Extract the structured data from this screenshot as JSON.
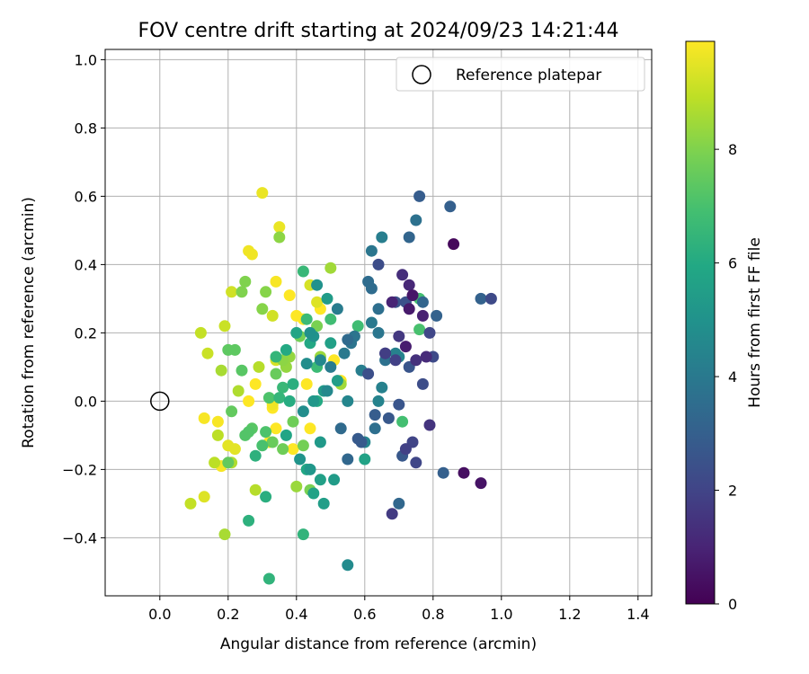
{
  "chart_data": {
    "type": "scatter",
    "title": "FOV centre drift starting at 2024/09/23 14:21:44",
    "xlabel": "Angular distance from reference (arcmin)",
    "ylabel": "Rotation from reference (arcmin)",
    "xlim": [
      -0.16,
      1.44
    ],
    "ylim": [
      -0.57,
      1.03
    ],
    "x_ticks": [
      0.0,
      0.2,
      0.4,
      0.6,
      0.8,
      1.0,
      1.2,
      1.4
    ],
    "x_tick_labels": [
      "0.0",
      "0.2",
      "0.4",
      "0.6",
      "0.8",
      "1.0",
      "1.2",
      "1.4"
    ],
    "y_ticks": [
      -0.4,
      -0.2,
      0.0,
      0.2,
      0.4,
      0.6,
      0.8,
      1.0
    ],
    "y_tick_labels": [
      "−0.4",
      "−0.2",
      "0.0",
      "0.2",
      "0.4",
      "0.6",
      "0.8",
      "1.0"
    ],
    "grid": true,
    "legend": {
      "placement": "top-right",
      "entries": [
        "Reference platepar"
      ]
    },
    "reference_point": {
      "x": 0.0,
      "y": 0.0
    },
    "colorbar": {
      "label": "Hours from first FF file",
      "range": [
        0,
        9.9
      ],
      "ticks": [
        0,
        2,
        4,
        6,
        8
      ],
      "tick_labels": [
        "0",
        "2",
        "4",
        "6",
        "8"
      ],
      "colormap": "viridis"
    },
    "series": [
      {
        "points": [
          [
            0.86,
            0.46,
            0.2
          ],
          [
            0.89,
            -0.21,
            0.4
          ],
          [
            0.94,
            -0.24,
            0.5
          ],
          [
            0.74,
            0.31,
            0.6
          ],
          [
            0.73,
            0.27,
            0.7
          ],
          [
            0.72,
            0.16,
            0.8
          ],
          [
            0.77,
            0.25,
            0.9
          ],
          [
            0.68,
            0.29,
            1.0
          ],
          [
            0.73,
            0.34,
            1.1
          ],
          [
            0.78,
            0.13,
            1.2
          ],
          [
            0.71,
            0.37,
            1.3
          ],
          [
            0.75,
            0.12,
            1.4
          ],
          [
            0.79,
            -0.07,
            1.5
          ],
          [
            0.7,
            0.19,
            1.6
          ],
          [
            0.68,
            -0.33,
            1.7
          ],
          [
            0.66,
            0.14,
            1.8
          ],
          [
            0.69,
            0.12,
            1.9
          ],
          [
            0.72,
            -0.14,
            1.9
          ],
          [
            0.74,
            -0.12,
            2.0
          ],
          [
            0.75,
            -0.18,
            2.1
          ],
          [
            0.79,
            0.2,
            2.1
          ],
          [
            0.8,
            0.13,
            2.2
          ],
          [
            0.97,
            0.3,
            2.2
          ],
          [
            0.77,
            0.05,
            2.3
          ],
          [
            0.64,
            0.4,
            2.3
          ],
          [
            0.66,
            0.14,
            2.4
          ],
          [
            0.61,
            0.08,
            2.4
          ],
          [
            0.69,
            0.29,
            2.5
          ],
          [
            0.72,
            0.29,
            2.5
          ],
          [
            0.7,
            -0.01,
            2.6
          ],
          [
            0.73,
            0.1,
            2.6
          ],
          [
            0.67,
            -0.05,
            2.7
          ],
          [
            0.71,
            -0.16,
            2.7
          ],
          [
            0.58,
            -0.11,
            2.8
          ],
          [
            0.59,
            -0.12,
            2.8
          ],
          [
            0.63,
            -0.04,
            2.9
          ],
          [
            0.76,
            0.6,
            2.9
          ],
          [
            0.85,
            0.57,
            3.0
          ],
          [
            0.83,
            -0.21,
            3.0
          ],
          [
            0.94,
            0.3,
            3.1
          ],
          [
            0.81,
            0.25,
            3.1
          ],
          [
            0.73,
            0.48,
            3.2
          ],
          [
            0.77,
            0.29,
            3.2
          ],
          [
            0.7,
            -0.3,
            3.3
          ],
          [
            0.55,
            -0.17,
            3.3
          ],
          [
            0.53,
            -0.08,
            3.4
          ],
          [
            0.55,
            0.18,
            3.4
          ],
          [
            0.61,
            0.35,
            3.5
          ],
          [
            0.62,
            0.33,
            3.5
          ],
          [
            0.63,
            -0.08,
            3.6
          ],
          [
            0.64,
            0.27,
            3.6
          ],
          [
            0.66,
            0.12,
            3.7
          ],
          [
            0.75,
            0.53,
            3.7
          ],
          [
            0.56,
            0.17,
            3.8
          ],
          [
            0.57,
            0.19,
            3.8
          ],
          [
            0.62,
            0.44,
            3.9
          ],
          [
            0.64,
            0.2,
            3.9
          ],
          [
            0.62,
            0.23,
            4.0
          ],
          [
            0.54,
            0.14,
            4.0
          ],
          [
            0.52,
            0.27,
            4.1
          ],
          [
            0.5,
            0.1,
            4.1
          ],
          [
            0.59,
            0.09,
            4.2
          ],
          [
            0.65,
            0.48,
            4.2
          ],
          [
            0.65,
            0.04,
            4.3
          ],
          [
            0.69,
            0.14,
            4.3
          ],
          [
            0.7,
            0.13,
            4.4
          ],
          [
            0.64,
            0.0,
            4.4
          ],
          [
            0.6,
            -0.12,
            4.5
          ],
          [
            0.55,
            0.0,
            4.5
          ],
          [
            0.47,
            0.12,
            4.6
          ],
          [
            0.49,
            0.03,
            4.6
          ],
          [
            0.55,
            -0.48,
            4.7
          ],
          [
            0.42,
            -0.03,
            4.8
          ],
          [
            0.43,
            0.11,
            4.8
          ],
          [
            0.44,
            0.2,
            4.9
          ],
          [
            0.45,
            0.19,
            5.0
          ],
          [
            0.46,
            0.34,
            5.0
          ],
          [
            0.41,
            -0.17,
            5.1
          ],
          [
            0.44,
            -0.2,
            5.2
          ],
          [
            0.45,
            0.0,
            5.2
          ],
          [
            0.47,
            -0.12,
            5.3
          ],
          [
            0.48,
            0.03,
            5.3
          ],
          [
            0.49,
            0.3,
            5.4
          ],
          [
            0.51,
            -0.23,
            5.4
          ],
          [
            0.52,
            0.06,
            5.5
          ],
          [
            0.48,
            -0.3,
            5.5
          ],
          [
            0.5,
            0.17,
            5.6
          ],
          [
            0.47,
            -0.23,
            5.6
          ],
          [
            0.45,
            -0.27,
            5.7
          ],
          [
            0.6,
            -0.17,
            5.7
          ],
          [
            0.37,
            -0.1,
            5.8
          ],
          [
            0.4,
            0.2,
            5.8
          ],
          [
            0.43,
            -0.2,
            5.9
          ],
          [
            0.44,
            0.17,
            5.9
          ],
          [
            0.46,
            0.0,
            6.0
          ],
          [
            0.37,
            0.15,
            6.0
          ],
          [
            0.38,
            0.0,
            6.1
          ],
          [
            0.39,
            0.05,
            6.2
          ],
          [
            0.31,
            -0.28,
            6.2
          ],
          [
            0.26,
            -0.35,
            6.3
          ],
          [
            0.28,
            -0.16,
            6.3
          ],
          [
            0.32,
            -0.52,
            6.4
          ],
          [
            0.42,
            -0.39,
            6.4
          ],
          [
            0.34,
            0.13,
            6.5
          ],
          [
            0.35,
            0.01,
            6.5
          ],
          [
            0.36,
            0.04,
            6.6
          ],
          [
            0.42,
            0.38,
            6.6
          ],
          [
            0.43,
            0.24,
            6.7
          ],
          [
            0.46,
            0.1,
            6.7
          ],
          [
            0.5,
            0.24,
            6.8
          ],
          [
            0.58,
            0.22,
            6.8
          ],
          [
            0.71,
            -0.06,
            6.9
          ],
          [
            0.76,
            0.3,
            6.9
          ],
          [
            0.76,
            0.21,
            7.0
          ],
          [
            0.3,
            -0.13,
            7.0
          ],
          [
            0.31,
            -0.09,
            7.1
          ],
          [
            0.32,
            0.01,
            7.1
          ],
          [
            0.25,
            -0.1,
            7.2
          ],
          [
            0.26,
            -0.09,
            7.2
          ],
          [
            0.27,
            -0.08,
            7.3
          ],
          [
            0.24,
            0.09,
            7.3
          ],
          [
            0.22,
            0.15,
            7.4
          ],
          [
            0.2,
            0.15,
            7.4
          ],
          [
            0.2,
            -0.18,
            7.5
          ],
          [
            0.21,
            -0.03,
            7.5
          ],
          [
            0.33,
            -0.12,
            7.6
          ],
          [
            0.34,
            0.08,
            7.6
          ],
          [
            0.36,
            -0.14,
            7.7
          ],
          [
            0.39,
            -0.06,
            7.7
          ],
          [
            0.41,
            0.19,
            7.8
          ],
          [
            0.42,
            -0.13,
            7.8
          ],
          [
            0.44,
            -0.26,
            7.9
          ],
          [
            0.46,
            0.22,
            7.9
          ],
          [
            0.24,
            0.32,
            8.0
          ],
          [
            0.25,
            0.35,
            8.0
          ],
          [
            0.3,
            0.27,
            8.1
          ],
          [
            0.31,
            0.32,
            8.1
          ],
          [
            0.35,
            0.48,
            8.2
          ],
          [
            0.36,
            0.12,
            8.2
          ],
          [
            0.37,
            0.1,
            8.3
          ],
          [
            0.38,
            0.13,
            8.3
          ],
          [
            0.4,
            -0.25,
            8.4
          ],
          [
            0.47,
            0.13,
            8.4
          ],
          [
            0.5,
            0.39,
            8.5
          ],
          [
            0.53,
            0.05,
            8.5
          ],
          [
            0.18,
            0.09,
            8.6
          ],
          [
            0.19,
            -0.39,
            8.6
          ],
          [
            0.21,
            -0.18,
            8.7
          ],
          [
            0.23,
            0.03,
            8.7
          ],
          [
            0.28,
            -0.26,
            8.8
          ],
          [
            0.29,
            0.1,
            8.8
          ],
          [
            0.16,
            -0.18,
            8.9
          ],
          [
            0.17,
            -0.1,
            8.9
          ],
          [
            0.09,
            -0.3,
            9.0
          ],
          [
            0.12,
            0.2,
            9.0
          ],
          [
            0.14,
            0.14,
            9.1
          ],
          [
            0.19,
            0.22,
            9.1
          ],
          [
            0.21,
            0.32,
            9.2
          ],
          [
            0.33,
            0.25,
            9.2
          ],
          [
            0.34,
            0.12,
            9.3
          ],
          [
            0.44,
            0.34,
            9.3
          ],
          [
            0.46,
            0.29,
            9.4
          ],
          [
            0.13,
            -0.28,
            9.4
          ],
          [
            0.2,
            -0.13,
            9.5
          ],
          [
            0.22,
            -0.14,
            9.5
          ],
          [
            0.3,
            0.61,
            9.6
          ],
          [
            0.35,
            0.51,
            9.6
          ],
          [
            0.26,
            0.44,
            9.7
          ],
          [
            0.27,
            0.43,
            9.7
          ],
          [
            0.33,
            -0.01,
            9.7
          ],
          [
            0.34,
            0.35,
            9.8
          ],
          [
            0.13,
            -0.05,
            9.8
          ],
          [
            0.17,
            -0.06,
            9.8
          ],
          [
            0.18,
            -0.19,
            9.8
          ],
          [
            0.28,
            0.05,
            9.9
          ],
          [
            0.34,
            -0.08,
            9.9
          ],
          [
            0.38,
            0.31,
            9.9
          ],
          [
            0.4,
            0.25,
            9.9
          ],
          [
            0.43,
            0.05,
            9.9
          ],
          [
            0.44,
            -0.08,
            9.9
          ],
          [
            0.47,
            0.27,
            9.9
          ],
          [
            0.51,
            0.12,
            9.9
          ],
          [
            0.53,
            0.06,
            9.9
          ],
          [
            0.33,
            -0.02,
            9.9
          ],
          [
            0.32,
            -0.12,
            9.9
          ],
          [
            0.39,
            -0.14,
            9.9
          ],
          [
            0.26,
            0.0,
            9.9
          ],
          [
            0.42,
            0.24,
            9.9
          ]
        ]
      }
    ]
  }
}
